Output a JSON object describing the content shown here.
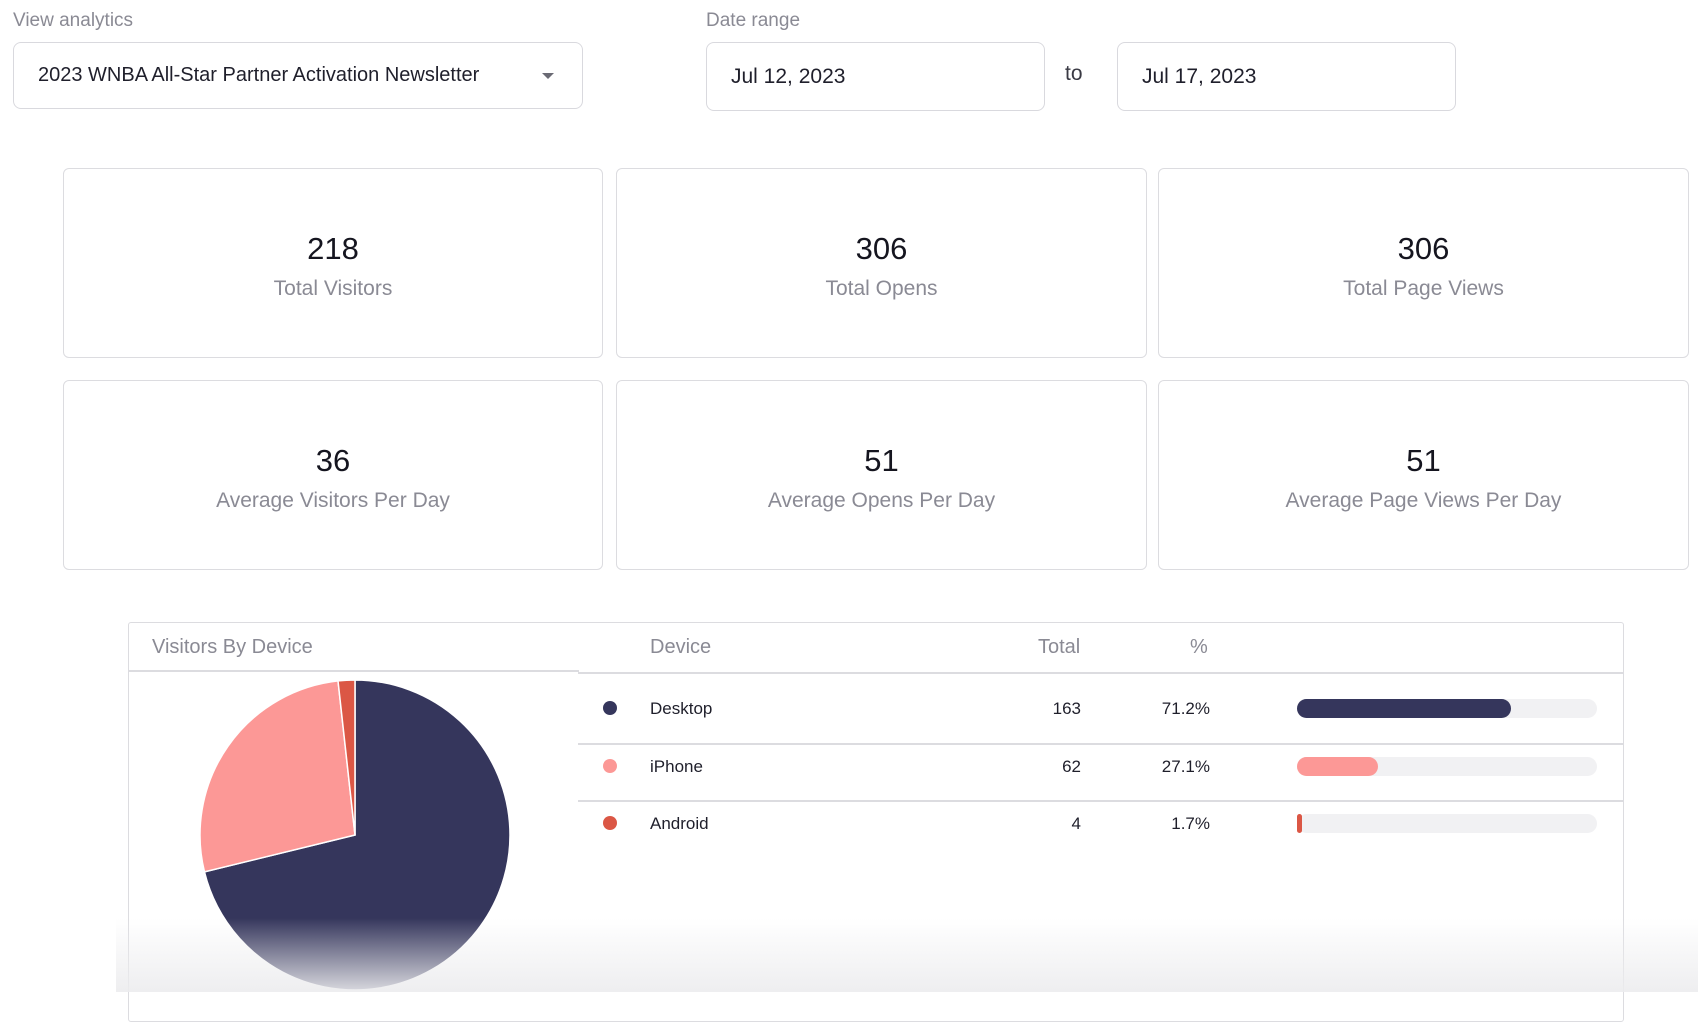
{
  "filters": {
    "view_label": "View analytics",
    "view_value": "2023 WNBA All-Star Partner Activation Newsletter",
    "date_label": "Date range",
    "start_date": "Jul 12, 2023",
    "to_label": "to",
    "end_date": "Jul 17, 2023"
  },
  "stats": [
    {
      "value": "218",
      "label": "Total Visitors"
    },
    {
      "value": "306",
      "label": "Total Opens"
    },
    {
      "value": "306",
      "label": "Total Page Views"
    },
    {
      "value": "36",
      "label": "Average Visitors Per Day"
    },
    {
      "value": "51",
      "label": "Average Opens Per Day"
    },
    {
      "value": "51",
      "label": "Average Page Views Per Day"
    }
  ],
  "devices": {
    "title": "Visitors By Device",
    "headers": {
      "device": "Device",
      "total": "Total",
      "percent": "%"
    },
    "rows": [
      {
        "name": "Desktop",
        "total": "163",
        "percent": "71.2%",
        "fraction": 0.712,
        "color": "#35365c"
      },
      {
        "name": "iPhone",
        "total": "62",
        "percent": "27.1%",
        "fraction": 0.271,
        "color": "#fc9896"
      },
      {
        "name": "Android",
        "total": "4",
        "percent": "1.7%",
        "fraction": 0.017,
        "color": "#db5745"
      }
    ]
  },
  "chart_data": {
    "type": "pie",
    "categories": [
      "Desktop",
      "iPhone",
      "Android"
    ],
    "values": [
      163,
      62,
      4
    ],
    "colors": [
      "#35365c",
      "#fc9896",
      "#db5745"
    ],
    "title": "Visitors By Device",
    "legend": "table-right"
  }
}
